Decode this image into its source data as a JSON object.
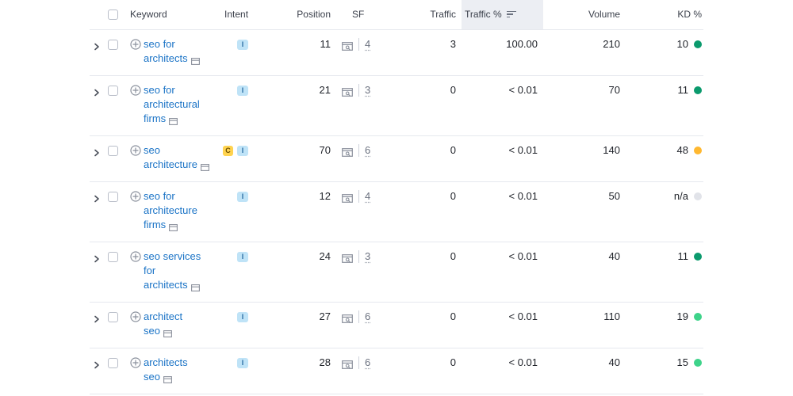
{
  "header": {
    "keyword": "Keyword",
    "intent": "Intent",
    "position": "Position",
    "sf": "SF",
    "traffic": "Traffic",
    "traffic_pct": "Traffic %",
    "volume": "Volume",
    "kd": "KD %"
  },
  "colors": {
    "link": "#1a73c6",
    "kd_dark_green": "#0b9a6d",
    "kd_light_green": "#3ed38a",
    "kd_yellow": "#ffb830",
    "kd_na": "#e1e3e9"
  },
  "rows": [
    {
      "keyword_lines": [
        "seo for",
        "architects"
      ],
      "intents": [
        "I"
      ],
      "position": "11",
      "sf": "4",
      "traffic": "3",
      "traffic_pct": "100.00",
      "volume": "210",
      "kd": "10",
      "kd_color": "#0b9a6d"
    },
    {
      "keyword_lines": [
        "seo for",
        "architectural",
        "firms"
      ],
      "intents": [
        "I"
      ],
      "position": "21",
      "sf": "3",
      "traffic": "0",
      "traffic_pct": "< 0.01",
      "volume": "70",
      "kd": "11",
      "kd_color": "#0b9a6d"
    },
    {
      "keyword_lines": [
        "seo",
        "architecture"
      ],
      "intents": [
        "C",
        "I"
      ],
      "position": "70",
      "sf": "6",
      "traffic": "0",
      "traffic_pct": "< 0.01",
      "volume": "140",
      "kd": "48",
      "kd_color": "#ffb830"
    },
    {
      "keyword_lines": [
        "seo for",
        "architecture",
        "firms"
      ],
      "intents": [
        "I"
      ],
      "position": "12",
      "sf": "4",
      "traffic": "0",
      "traffic_pct": "< 0.01",
      "volume": "50",
      "kd": "n/a",
      "kd_color": "#e1e3e9"
    },
    {
      "keyword_lines": [
        "seo services",
        "for",
        "architects"
      ],
      "intents": [
        "I"
      ],
      "position": "24",
      "sf": "3",
      "traffic": "0",
      "traffic_pct": "< 0.01",
      "volume": "40",
      "kd": "11",
      "kd_color": "#0b9a6d"
    },
    {
      "keyword_lines": [
        "architect",
        "seo"
      ],
      "intents": [
        "I"
      ],
      "position": "27",
      "sf": "6",
      "traffic": "0",
      "traffic_pct": "< 0.01",
      "volume": "110",
      "kd": "19",
      "kd_color": "#3ed38a"
    },
    {
      "keyword_lines": [
        "architects",
        "seo"
      ],
      "intents": [
        "I"
      ],
      "position": "28",
      "sf": "6",
      "traffic": "0",
      "traffic_pct": "< 0.01",
      "volume": "40",
      "kd": "15",
      "kd_color": "#3ed38a"
    }
  ]
}
